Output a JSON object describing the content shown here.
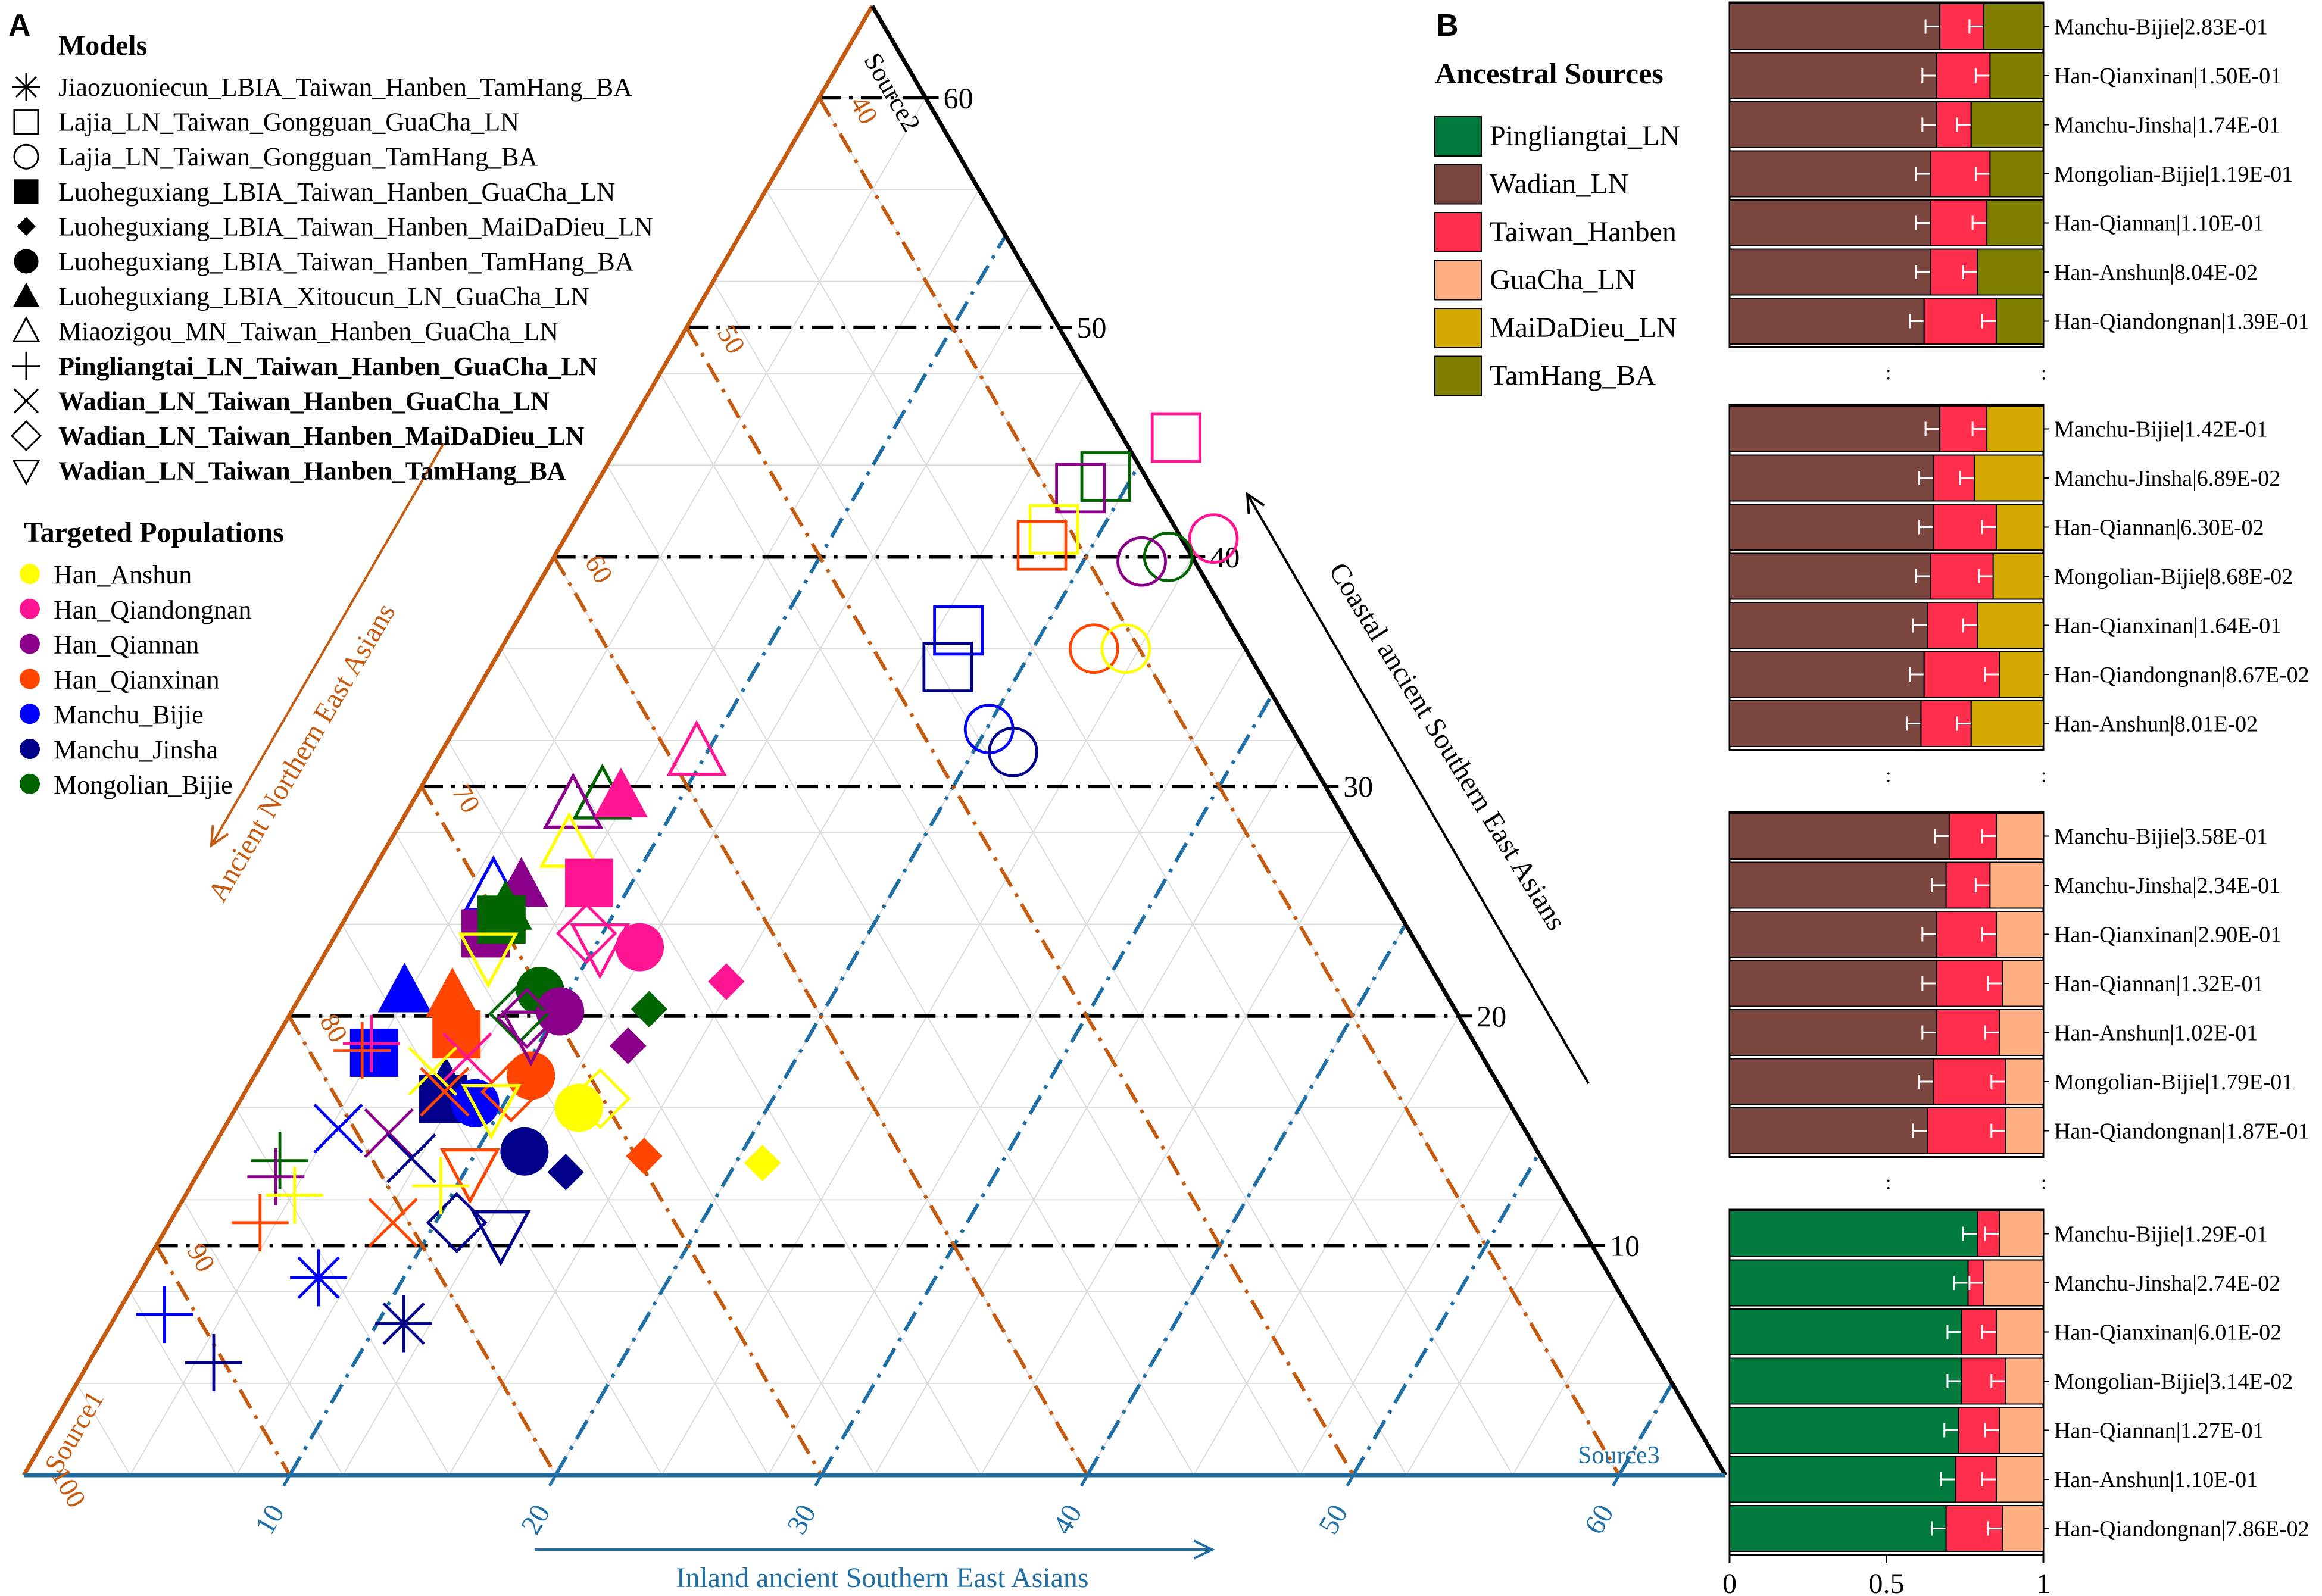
{
  "panel_a": {
    "letter": "A",
    "models_title": "Models",
    "models": [
      {
        "label": "Jiaozuoniecun_LBIA_Taiwan_Hanben_TamHang_BA",
        "shape": "asterisk",
        "bold": false
      },
      {
        "label": "Lajia_LN_Taiwan_Gongguan_GuaCha_LN",
        "shape": "square-open",
        "bold": false
      },
      {
        "label": "Lajia_LN_Taiwan_Gongguan_TamHang_BA",
        "shape": "circle-open",
        "bold": false
      },
      {
        "label": "Luoheguxiang_LBIA_Taiwan_Hanben_GuaCha_LN",
        "shape": "square-filled",
        "bold": false
      },
      {
        "label": "Luoheguxiang_LBIA_Taiwan_Hanben_MaiDaDieu_LN",
        "shape": "diamond-filled",
        "bold": false
      },
      {
        "label": "Luoheguxiang_LBIA_Taiwan_Hanben_TamHang_BA",
        "shape": "circle-filled",
        "bold": false
      },
      {
        "label": "Luoheguxiang_LBIA_Xitoucun_LN_GuaCha_LN",
        "shape": "triangle-filled",
        "bold": false
      },
      {
        "label": "Miaozigou_MN_Taiwan_Hanben_GuaCha_LN",
        "shape": "triangle-open",
        "bold": false
      },
      {
        "label": "Pingliangtai_LN_Taiwan_Hanben_GuaCha_LN",
        "shape": "plus",
        "bold": true
      },
      {
        "label": "Wadian_LN_Taiwan_Hanben_GuaCha_LN",
        "shape": "cross",
        "bold": true
      },
      {
        "label": "Wadian_LN_Taiwan_Hanben_MaiDaDieu_LN",
        "shape": "diamond-open",
        "bold": true
      },
      {
        "label": "Wadian_LN_Taiwan_Hanben_TamHang_BA",
        "shape": "triangle-down-open",
        "bold": true
      }
    ],
    "targets_title": "Targeted Populations",
    "targets": [
      {
        "label": "Han_Anshun",
        "color": "#ffff00"
      },
      {
        "label": "Han_Qiandongnan",
        "color": "#ff1493"
      },
      {
        "label": "Han_Qiannan",
        "color": "#8b008b"
      },
      {
        "label": "Han_Qianxinan",
        "color": "#ff4500"
      },
      {
        "label": "Manchu_Bijie",
        "color": "#0000ff"
      },
      {
        "label": "Manchu_Jinsha",
        "color": "#00008b"
      },
      {
        "label": "Mongolian_Bijie",
        "color": "#006400"
      }
    ],
    "axis_left_title": "Ancient Northern East Asians",
    "axis_right_title": "Coastal ancient Southern East Asians",
    "axis_bottom_title": "Inland ancient Southern East Asians",
    "source1": "Source1",
    "source2": "Source2",
    "source3": "Source3",
    "right_ticks": [
      "10",
      "20",
      "30",
      "40",
      "50",
      "60"
    ],
    "left_ticks": [
      "40",
      "50",
      "60",
      "70",
      "80",
      "90",
      "100"
    ],
    "bottom_ticks": [
      "10",
      "20",
      "30",
      "40",
      "50",
      "60"
    ],
    "colors": {
      "left": "#c55a11",
      "right": "#000000",
      "bottom": "#1f6fa5"
    }
  },
  "chart_data": {
    "type": "scatter",
    "subtype": "ternary",
    "title": "",
    "axes": {
      "a": {
        "name": "Ancient Northern East Asians",
        "corner": "Source1",
        "range": [
          36,
          100
        ]
      },
      "b": {
        "name": "Coastal ancient Southern East Asians",
        "corner": "Source2",
        "range": [
          0,
          64
        ]
      },
      "c": {
        "name": "Inland ancient Southern East Asians",
        "corner": "Source3",
        "range": [
          0,
          64
        ]
      }
    },
    "points": [
      {
        "shape": "square-open",
        "color": "#ff1493",
        "b": 45.2,
        "c": 20.8
      },
      {
        "shape": "square-open",
        "color": "#006400",
        "b": 43.5,
        "c": 19.0
      },
      {
        "shape": "square-open",
        "color": "#8b008b",
        "b": 43.0,
        "c": 18.3
      },
      {
        "shape": "square-open",
        "color": "#ffff00",
        "b": 41.2,
        "c": 18.2
      },
      {
        "shape": "square-open",
        "color": "#ff4500",
        "b": 40.5,
        "c": 18.1
      },
      {
        "shape": "square-open",
        "color": "#0000ff",
        "b": 36.8,
        "c": 16.8
      },
      {
        "shape": "square-open",
        "color": "#00008b",
        "b": 35.2,
        "c": 17.2
      },
      {
        "shape": "circle-open",
        "color": "#ff1493",
        "b": 40.8,
        "c": 24.4
      },
      {
        "shape": "circle-open",
        "color": "#006400",
        "b": 40.0,
        "c": 23.1
      },
      {
        "shape": "circle-open",
        "color": "#8b008b",
        "b": 39.8,
        "c": 22.2
      },
      {
        "shape": "circle-open",
        "color": "#ff4500",
        "b": 36.0,
        "c": 22.3
      },
      {
        "shape": "circle-open",
        "color": "#ffff00",
        "b": 36.0,
        "c": 23.5
      },
      {
        "shape": "circle-open",
        "color": "#0000ff",
        "b": 32.5,
        "c": 20.1
      },
      {
        "shape": "circle-open",
        "color": "#00008b",
        "b": 31.5,
        "c": 21.5
      },
      {
        "shape": "triangle-open",
        "color": "#ff1493",
        "b": 31.5,
        "c": 9.6
      },
      {
        "shape": "triangle-open",
        "color": "#006400",
        "b": 29.6,
        "c": 7.0
      },
      {
        "shape": "triangle-open",
        "color": "#8b008b",
        "b": 29.2,
        "c": 6.1
      },
      {
        "shape": "triangle-open",
        "color": "#ffff00",
        "b": 27.5,
        "c": 6.8
      },
      {
        "shape": "triangle-open",
        "color": "#0000ff",
        "b": 25.6,
        "c": 4.9
      },
      {
        "shape": "triangle-filled",
        "color": "#ff1493",
        "b": 29.6,
        "c": 7.7
      },
      {
        "shape": "triangle-filled",
        "color": "#8b008b",
        "b": 25.7,
        "c": 5.9
      },
      {
        "shape": "triangle-filled",
        "color": "#0000ff",
        "b": 21.1,
        "c": 3.8
      },
      {
        "shape": "triangle-filled",
        "color": "#006400",
        "b": 24.7,
        "c": 5.8
      },
      {
        "shape": "triangle-filled",
        "color": "#ff4500",
        "b": 20.9,
        "c": 5.7
      },
      {
        "shape": "triangle-filled",
        "color": "#00008b",
        "b": 17.0,
        "c": 7.4
      },
      {
        "shape": "square-filled",
        "color": "#ff1493",
        "b": 25.8,
        "c": 8.4
      },
      {
        "shape": "square-filled",
        "color": "#8b008b",
        "b": 23.6,
        "c": 5.6
      },
      {
        "shape": "square-filled",
        "color": "#006400",
        "b": 24.2,
        "c": 5.9
      },
      {
        "shape": "square-filled",
        "color": "#ff4500",
        "b": 19.2,
        "c": 6.7
      },
      {
        "shape": "square-filled",
        "color": "#0000ff",
        "b": 18.4,
        "c": 4.0
      },
      {
        "shape": "square-filled",
        "color": "#00008b",
        "b": 16.4,
        "c": 7.6
      },
      {
        "shape": "circle-filled",
        "color": "#ff1493",
        "b": 23.0,
        "c": 11.7
      },
      {
        "shape": "circle-filled",
        "color": "#006400",
        "b": 21.1,
        "c": 8.9
      },
      {
        "shape": "circle-filled",
        "color": "#8b008b",
        "b": 20.2,
        "c": 10.1
      },
      {
        "shape": "circle-filled",
        "color": "#ff4500",
        "b": 17.4,
        "c": 10.4
      },
      {
        "shape": "circle-filled",
        "color": "#0000ff",
        "b": 16.2,
        "c": 8.9
      },
      {
        "shape": "circle-filled",
        "color": "#ffff00",
        "b": 16.0,
        "c": 12.9
      },
      {
        "shape": "circle-filled",
        "color": "#00008b",
        "b": 14.1,
        "c": 11.8
      },
      {
        "shape": "diamond-filled",
        "color": "#ff1493",
        "b": 21.5,
        "c": 15.7
      },
      {
        "shape": "diamond-filled",
        "color": "#006400",
        "b": 20.3,
        "c": 13.4
      },
      {
        "shape": "diamond-filled",
        "color": "#8b008b",
        "b": 18.7,
        "c": 13.4
      },
      {
        "shape": "diamond-filled",
        "color": "#ff4500",
        "b": 13.9,
        "c": 16.4
      },
      {
        "shape": "diamond-filled",
        "color": "#ffff00",
        "b": 13.6,
        "c": 21.0
      },
      {
        "shape": "diamond-filled",
        "color": "#00008b",
        "b": 13.2,
        "c": 13.8
      },
      {
        "shape": "diamond-open",
        "color": "#ff1493",
        "b": 23.6,
        "c": 9.4
      },
      {
        "shape": "diamond-open",
        "color": "#006400",
        "b": 20.1,
        "c": 8.6
      },
      {
        "shape": "diamond-open",
        "color": "#8b008b",
        "b": 19.9,
        "c": 9.0
      },
      {
        "shape": "diamond-open",
        "color": "#ff4500",
        "b": 16.7,
        "c": 10.0
      },
      {
        "shape": "diamond-open",
        "color": "#ffff00",
        "b": 16.4,
        "c": 13.5
      },
      {
        "shape": "diamond-open",
        "color": "#00008b",
        "b": 11.0,
        "c": 10.8
      },
      {
        "shape": "triangle-down-open",
        "color": "#ff1493",
        "b": 23.0,
        "c": 10.2
      },
      {
        "shape": "triangle-down-open",
        "color": "#ffff00",
        "b": 22.6,
        "c": 6.2
      },
      {
        "shape": "triangle-down-open",
        "color": "#8b008b",
        "b": 19.2,
        "c": 9.5
      },
      {
        "shape": "triangle-down-open",
        "color": "#ffff00",
        "b": 16.0,
        "c": 9.6
      },
      {
        "shape": "triangle-down-open",
        "color": "#ff4500",
        "b": 13.2,
        "c": 10.2
      },
      {
        "shape": "triangle-down-open",
        "color": "#00008b",
        "b": 10.5,
        "c": 12.7
      },
      {
        "shape": "cross",
        "color": "#ff1493",
        "b": 18.2,
        "c": 7.6
      },
      {
        "shape": "cross",
        "color": "#ffff00",
        "b": 17.6,
        "c": 6.6
      },
      {
        "shape": "cross",
        "color": "#ff4500",
        "b": 16.7,
        "c": 7.5
      },
      {
        "shape": "cross",
        "color": "#8b008b",
        "b": 14.9,
        "c": 6.3
      },
      {
        "shape": "cross",
        "color": "#0000ff",
        "b": 15.1,
        "c": 4.3
      },
      {
        "shape": "cross",
        "color": "#00008b",
        "b": 13.8,
        "c": 7.7
      },
      {
        "shape": "cross",
        "color": "#ff4500",
        "b": 11.0,
        "c": 8.4
      },
      {
        "shape": "plus",
        "color": "#ff1493",
        "b": 18.8,
        "c": 3.7
      },
      {
        "shape": "plus",
        "color": "#ff4500",
        "b": 18.5,
        "c": 3.5
      },
      {
        "shape": "plus",
        "color": "#006400",
        "b": 13.7,
        "c": 2.8
      },
      {
        "shape": "plus",
        "color": "#8b008b",
        "b": 13.0,
        "c": 3.0
      },
      {
        "shape": "plus",
        "color": "#ffff00",
        "b": 12.2,
        "c": 4.1
      },
      {
        "shape": "plus",
        "color": "#ff4500",
        "b": 11.0,
        "c": 3.4
      },
      {
        "shape": "plus",
        "color": "#ffff00",
        "b": 12.6,
        "c": 9.4
      },
      {
        "shape": "plus",
        "color": "#0000ff",
        "b": 7.0,
        "c": 1.8
      },
      {
        "shape": "plus",
        "color": "#00008b",
        "b": 4.9,
        "c": 4.7
      },
      {
        "shape": "asterisk",
        "color": "#0000ff",
        "b": 8.6,
        "c": 6.8
      },
      {
        "shape": "asterisk",
        "color": "#00008b",
        "b": 6.6,
        "c": 11.0
      }
    ],
    "bars": {
      "type": "bar",
      "orientation": "horizontal-stacked",
      "xlim": [
        0,
        1
      ],
      "x_ticks": [
        "0",
        "0.5",
        "1"
      ],
      "groups": [
        {
          "sources": [
            "Wadian_LN",
            "Taiwan_Hanben",
            "TamHang_BA"
          ],
          "rows": [
            {
              "label": "Manchu-Bijie|2.83E-01",
              "values": [
                0.67,
                0.14,
                0.19
              ]
            },
            {
              "label": "Han-Qianxinan|1.50E-01",
              "values": [
                0.66,
                0.17,
                0.17
              ]
            },
            {
              "label": "Manchu-Jinsha|1.74E-01",
              "values": [
                0.66,
                0.11,
                0.23
              ]
            },
            {
              "label": "Mongolian-Bijie|1.19E-01",
              "values": [
                0.64,
                0.19,
                0.17
              ]
            },
            {
              "label": "Han-Qiannan|1.10E-01",
              "values": [
                0.64,
                0.18,
                0.18
              ]
            },
            {
              "label": "Han-Anshun|8.04E-02",
              "values": [
                0.64,
                0.15,
                0.21
              ]
            },
            {
              "label": "Han-Qiandongnan|1.39E-01",
              "values": [
                0.62,
                0.23,
                0.15
              ]
            }
          ]
        },
        {
          "sources": [
            "Wadian_LN",
            "Taiwan_Hanben",
            "MaiDaDieu_LN"
          ],
          "rows": [
            {
              "label": "Manchu-Bijie|1.42E-01",
              "values": [
                0.67,
                0.15,
                0.18
              ]
            },
            {
              "label": "Manchu-Jinsha|6.89E-02",
              "values": [
                0.65,
                0.13,
                0.22
              ]
            },
            {
              "label": "Han-Qiannan|6.30E-02",
              "values": [
                0.65,
                0.2,
                0.15
              ]
            },
            {
              "label": "Mongolian-Bijie|8.68E-02",
              "values": [
                0.64,
                0.2,
                0.16
              ]
            },
            {
              "label": "Han-Qianxinan|1.64E-01",
              "values": [
                0.63,
                0.16,
                0.21
              ]
            },
            {
              "label": "Han-Qiandongnan|8.67E-02",
              "values": [
                0.62,
                0.24,
                0.14
              ]
            },
            {
              "label": "Han-Anshun|8.01E-02",
              "values": [
                0.61,
                0.16,
                0.23
              ]
            }
          ]
        },
        {
          "sources": [
            "Wadian_LN",
            "Taiwan_Hanben",
            "GuaCha_LN"
          ],
          "rows": [
            {
              "label": "Manchu-Bijie|3.58E-01",
              "values": [
                0.7,
                0.15,
                0.15
              ]
            },
            {
              "label": "Manchu-Jinsha|2.34E-01",
              "values": [
                0.69,
                0.14,
                0.17
              ]
            },
            {
              "label": "Han-Qianxinan|2.90E-01",
              "values": [
                0.66,
                0.19,
                0.15
              ]
            },
            {
              "label": "Han-Qiannan|1.32E-01",
              "values": [
                0.66,
                0.21,
                0.13
              ]
            },
            {
              "label": "Han-Anshun|1.02E-01",
              "values": [
                0.66,
                0.2,
                0.14
              ]
            },
            {
              "label": "Mongolian-Bijie|1.79E-01",
              "values": [
                0.65,
                0.23,
                0.12
              ]
            },
            {
              "label": "Han-Qiandongnan|1.87E-01",
              "values": [
                0.63,
                0.25,
                0.12
              ]
            }
          ]
        },
        {
          "sources": [
            "Pingliangtai_LN",
            "Taiwan_Hanben",
            "GuaCha_LN"
          ],
          "rows": [
            {
              "label": "Manchu-Bijie|1.29E-01",
              "values": [
                0.79,
                0.07,
                0.14
              ]
            },
            {
              "label": "Manchu-Jinsha|2.74E-02",
              "values": [
                0.76,
                0.05,
                0.19
              ]
            },
            {
              "label": "Han-Qianxinan|6.01E-02",
              "values": [
                0.74,
                0.11,
                0.15
              ]
            },
            {
              "label": "Mongolian-Bijie|3.14E-02",
              "values": [
                0.74,
                0.14,
                0.12
              ]
            },
            {
              "label": "Han-Qiannan|1.27E-01",
              "values": [
                0.73,
                0.13,
                0.14
              ]
            },
            {
              "label": "Han-Anshun|1.10E-01",
              "values": [
                0.72,
                0.13,
                0.15
              ]
            },
            {
              "label": "Han-Qiandongnan|7.86E-02",
              "values": [
                0.69,
                0.18,
                0.13
              ]
            }
          ]
        }
      ]
    }
  },
  "panel_b": {
    "letter": "B",
    "legend_title": "Ancestral Sources",
    "sources": [
      {
        "label": "Pingliangtai_LN",
        "color": "#007a3d"
      },
      {
        "label": "Wadian_LN",
        "color": "#7b4640"
      },
      {
        "label": "Taiwan_Hanben",
        "color": "#ff2e4c"
      },
      {
        "label": "GuaCha_LN",
        "color": "#ffaf82"
      },
      {
        "label": "MaiDaDieu_LN",
        "color": "#d4aa00"
      },
      {
        "label": "TamHang_BA",
        "color": "#7f7f00"
      }
    ],
    "dots": ":",
    "source_colors": {
      "Pingliangtai_LN": "#007a3d",
      "Wadian_LN": "#7b4640",
      "Taiwan_Hanben": "#ff2e4c",
      "GuaCha_LN": "#ffaf82",
      "MaiDaDieu_LN": "#d4aa00",
      "TamHang_BA": "#7f7f00"
    }
  }
}
